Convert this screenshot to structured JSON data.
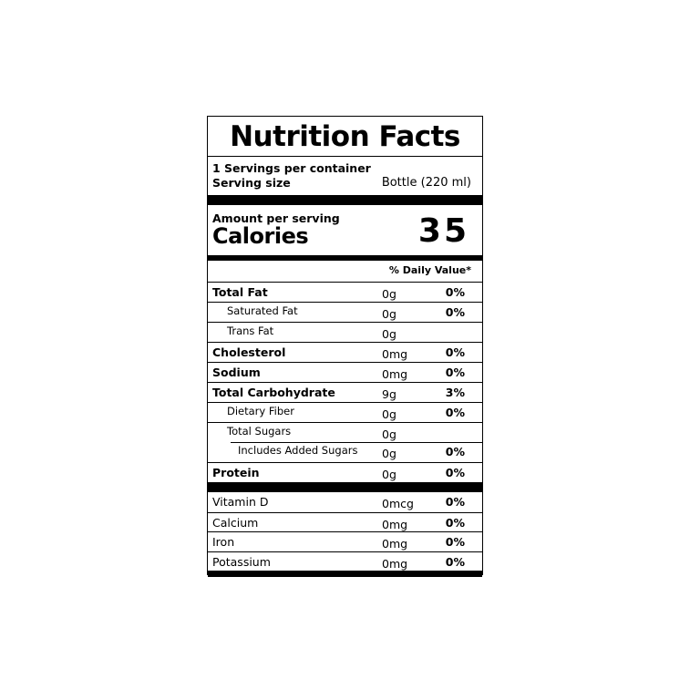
{
  "title": "Nutrition Facts",
  "servings_per_container": "1 Servings per container",
  "serving_size_label": "Serving size",
  "serving_size_value": "Bottle (220 ml)",
  "amount_per_serving": "Amount per serving",
  "calories_label": "Calories",
  "calories_value": "35",
  "daily_value_header": "% Daily Value*",
  "nutrients": [
    {
      "name": "Total Fat",
      "amount": "0g",
      "dv": "0%",
      "style": "b"
    },
    {
      "name": "Saturated Fat",
      "amount": "0g",
      "dv": "0%",
      "style": "i1"
    },
    {
      "name": "Trans Fat",
      "amount": "0g",
      "dv": "",
      "style": "i1"
    },
    {
      "name": "Cholesterol",
      "amount": "0mg",
      "dv": "0%",
      "style": "b"
    },
    {
      "name": "Sodium",
      "amount": "0mg",
      "dv": "0%",
      "style": "b"
    },
    {
      "name": "Total Carbohydrate",
      "amount": "9g",
      "dv": "3%",
      "style": "b"
    },
    {
      "name": "Dietary Fiber",
      "amount": "0g",
      "dv": "0%",
      "style": "i1"
    },
    {
      "name": "Total Sugars",
      "amount": "0g",
      "dv": "",
      "style": "i1"
    },
    {
      "name": "Includes Added Sugars",
      "amount": "0g",
      "dv": "0%",
      "style": "i2"
    },
    {
      "name": "Protein",
      "amount": "0g",
      "dv": "0%",
      "style": "b"
    }
  ],
  "vitamins": [
    {
      "name": "Vitamin D",
      "amount": "0mcg",
      "dv": "0%"
    },
    {
      "name": "Calcium",
      "amount": "0mg",
      "dv": "0%"
    },
    {
      "name": "Iron",
      "amount": "0mg",
      "dv": "0%"
    },
    {
      "name": "Potassium",
      "amount": "0mg",
      "dv": "0%"
    }
  ]
}
